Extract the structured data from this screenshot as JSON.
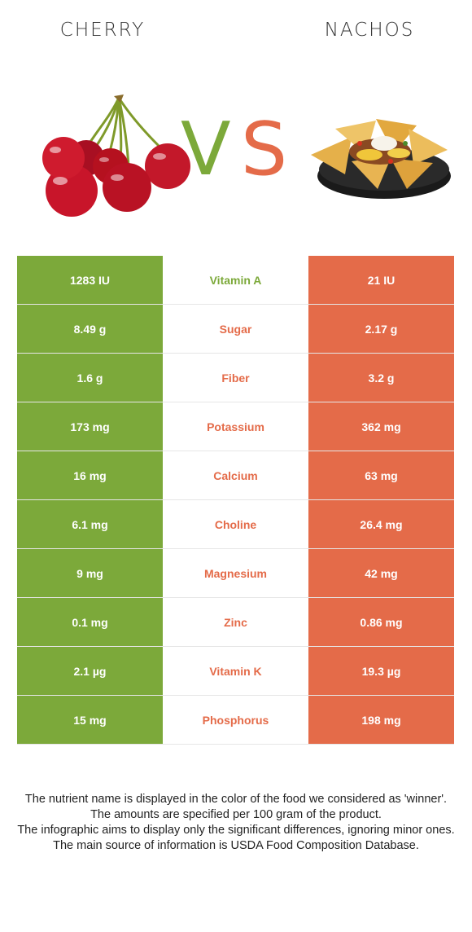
{
  "header": {
    "left_food": "CHERRY",
    "right_food": "NACHOS",
    "vs_v": "V",
    "vs_s": "S"
  },
  "colors": {
    "cherry": "#7ca93a",
    "nachos": "#e46b49",
    "cherry_fruit": "#c8152a",
    "nachos_chip": "#e5b04a"
  },
  "images": {
    "left_icon": "cherries-image",
    "right_icon": "nachos-plate-image"
  },
  "rows": [
    {
      "left": "1283 IU",
      "nutrient": "Vitamin A",
      "right": "21 IU",
      "winner": "cherry"
    },
    {
      "left": "8.49 g",
      "nutrient": "Sugar",
      "right": "2.17 g",
      "winner": "nachos"
    },
    {
      "left": "1.6 g",
      "nutrient": "Fiber",
      "right": "3.2 g",
      "winner": "nachos"
    },
    {
      "left": "173 mg",
      "nutrient": "Potassium",
      "right": "362 mg",
      "winner": "nachos"
    },
    {
      "left": "16 mg",
      "nutrient": "Calcium",
      "right": "63 mg",
      "winner": "nachos"
    },
    {
      "left": "6.1 mg",
      "nutrient": "Choline",
      "right": "26.4 mg",
      "winner": "nachos"
    },
    {
      "left": "9 mg",
      "nutrient": "Magnesium",
      "right": "42 mg",
      "winner": "nachos"
    },
    {
      "left": "0.1 mg",
      "nutrient": "Zinc",
      "right": "0.86 mg",
      "winner": "nachos"
    },
    {
      "left": "2.1 µg",
      "nutrient": "Vitamin K",
      "right": "19.3 µg",
      "winner": "nachos"
    },
    {
      "left": "15 mg",
      "nutrient": "Phosphorus",
      "right": "198 mg",
      "winner": "nachos"
    }
  ],
  "footnote": [
    "The nutrient name is displayed in the color of the food we considered as 'winner'.",
    "The amounts are specified per 100 gram of the product.",
    "The infographic aims to display only the significant differences, ignoring minor ones.",
    "The main source of information is USDA Food Composition Database."
  ]
}
